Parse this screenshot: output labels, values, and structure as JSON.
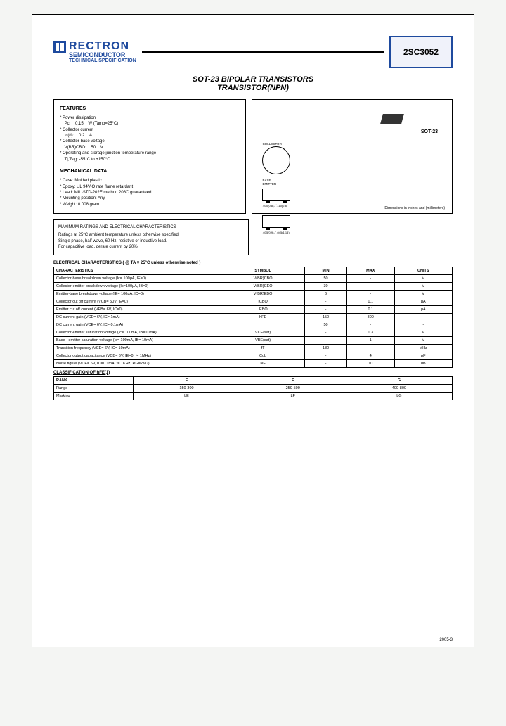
{
  "header": {
    "brand": "RECTRON",
    "sub": "SEMICONDUCTOR",
    "sub2": "TECHNICAL SPECIFICATION",
    "part_number": "2SC3052"
  },
  "title1": "SOT-23 BIPOLAR TRANSISTORS",
  "title2": "TRANSISTOR(NPN)",
  "features": {
    "heading": "FEATURES",
    "pd_label": "Power dissipation",
    "pd_sym": "Pc:",
    "pd_val": "0.15",
    "pd_unit": "W (Tamb=25°C)",
    "ic_label": "Collector current",
    "ic_sym": "Ic(d):",
    "ic_val": "0.2",
    "ic_unit": "A",
    "vcbo_label": "Collector-base voltage",
    "vcbo_sym": "V(BR)CBO:",
    "vcbo_val": "50",
    "vcbo_unit": "V",
    "temp_label": "Operating and storage junction temperature range",
    "temp_val": "Tj,Tstg: -55°C to +150°C",
    "mech_heading": "MECHANICAL DATA",
    "m1": "Case: Molded plastic",
    "m2": "Epoxy: UL 94V-O rate flame retardant",
    "m3": "Lead: MIL-STD-202E method 208C guaranteed",
    "m4": "Mounting position: Any",
    "m5": "Weight: 0.008 gram"
  },
  "pkg": {
    "label": "SOT-23",
    "pin_c": "COLLECTOR",
    "pin_b": "BASE",
    "pin_e": "EMITTER",
    "dim_note": "Dimensions in inches and (millimeters)"
  },
  "maxratings": {
    "heading": "MAXIMUM RATINGS AND ELECTRICAL CHARACTERISTICS",
    "l1": "Ratings at 25°C ambient temperature unless otherwise specified.",
    "l2": "Single phase, half wave, 60 Hz, resistive or inductive load.",
    "l3": "For capacitive load, derate current by 20%."
  },
  "elec_title": "ELECTRICAL CHARACTERISTICS ( @ TA = 25°C unless otherwise noted )",
  "elec_headers": [
    "CHARACTERISTICS",
    "SYMBOL",
    "MIN",
    "MAX",
    "UNITS"
  ],
  "elec_rows": [
    [
      "Collector-base breakdown voltage (Ic= 100μA, IE=0)",
      "V(BR)CBO",
      "50",
      "-",
      "V"
    ],
    [
      "Collector-emitter breakdown voltage (Ic=100μA, IB=0)",
      "V(BR)CEO",
      "30",
      "-",
      "V"
    ],
    [
      "Emitter-base breakdown voltage (IE= 100μA, IC=0)",
      "V(BR)EBO",
      "6",
      "-",
      "V"
    ],
    [
      "Collector cut off current (VCB= 50V, IE=0)",
      "ICBO",
      "-",
      "0.1",
      "μA"
    ],
    [
      "Emitter cut off current (VEB= 6V, IC=0)",
      "IEBO",
      "-",
      "0.1",
      "μA"
    ],
    [
      "DC current gain (VCE= 6V, IC= 1mA)",
      "hFE",
      "150",
      "800",
      "-"
    ],
    [
      "DC current gain (VCE= 6V, IC= 0.1mA)",
      "",
      "50",
      "-",
      "-"
    ],
    [
      "Collector-emitter saturation voltage (Ic= 100mA, IB=10mA)",
      "VCE(sat)",
      "-",
      "0.3",
      "V"
    ],
    [
      "Base - emitter saturation voltage (Ic= 100mA, IB= 10mA)",
      "VBE(sat)",
      "-",
      "1",
      "V"
    ],
    [
      "Transition frequency (VCE= 6V, IC= 10mA)",
      "fT",
      "180",
      "-",
      "MHz"
    ],
    [
      "Collector output capacitance (VCB= 6V, IE=0, f= 1MHz)",
      "Cob",
      "-",
      "4",
      "pF"
    ],
    [
      "Noise figure (VCE= 6V, IC=0.1mA, f= 1KHz, RG=2KΩ)",
      "NF",
      "-",
      "10",
      "dB"
    ]
  ],
  "class_title": "CLASSIFICATION OF hFE(1)",
  "class_headers": [
    "RANK",
    "E",
    "F",
    "G"
  ],
  "class_rows": [
    [
      "Range",
      "150-300",
      "250-500",
      "400-800"
    ],
    [
      "Marking",
      "LE",
      "LF",
      "LG"
    ]
  ],
  "footer": "2005-3",
  "colors": {
    "brand": "#1e4a9e",
    "border": "#000000",
    "bg": "#ffffff"
  }
}
